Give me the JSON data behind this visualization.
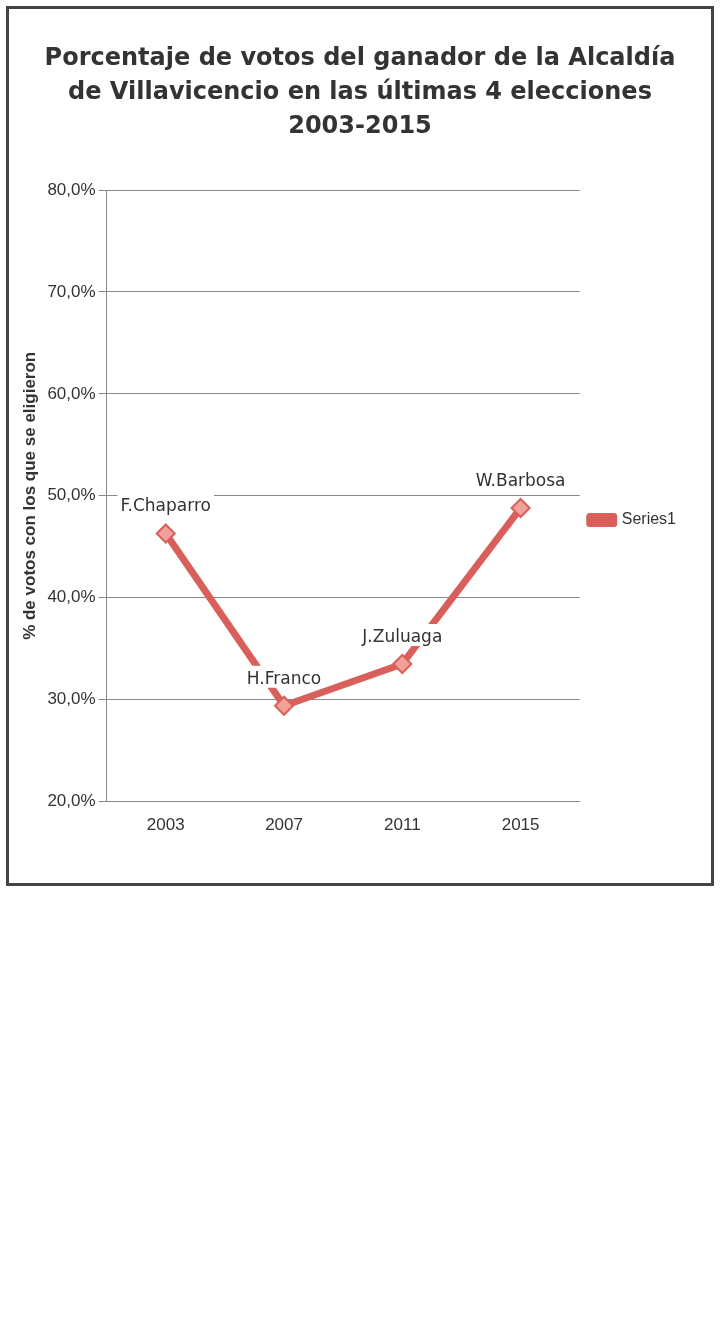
{
  "chart_data": {
    "type": "line",
    "title": "Porcentaje de votos del ganador de la Alcaldía de Villavicencio en las últimas 4 elecciones 2003-2015",
    "ylabel": "% de votos con los que se eligieron",
    "categories": [
      "2003",
      "2007",
      "2011",
      "2015"
    ],
    "series": [
      {
        "name": "Series1",
        "color": "#d9605a",
        "values": [
          46.3,
          29.4,
          33.5,
          48.8
        ]
      }
    ],
    "ylim": [
      20,
      80
    ],
    "yticks": [
      {
        "value": 20,
        "label": "20,0%"
      },
      {
        "value": 30,
        "label": "30,0%"
      },
      {
        "value": 40,
        "label": "40,0%"
      },
      {
        "value": 50,
        "label": "50,0%"
      },
      {
        "value": 60,
        "label": "60,0%"
      },
      {
        "value": 70,
        "label": "70,0%"
      },
      {
        "value": 80,
        "label": "80,0%"
      }
    ],
    "annotations": [
      {
        "text": "F.Chaparro",
        "x": "2003",
        "y": 46.3
      },
      {
        "text": "H.Franco",
        "x": "2007",
        "y": 29.4
      },
      {
        "text": "J.Zuluaga",
        "x": "2011",
        "y": 33.5
      },
      {
        "text": "W.Barbosa",
        "x": "2015",
        "y": 48.8
      }
    ],
    "grid": "y",
    "legend": "right",
    "marker": "diamond",
    "line_style": "solid"
  }
}
